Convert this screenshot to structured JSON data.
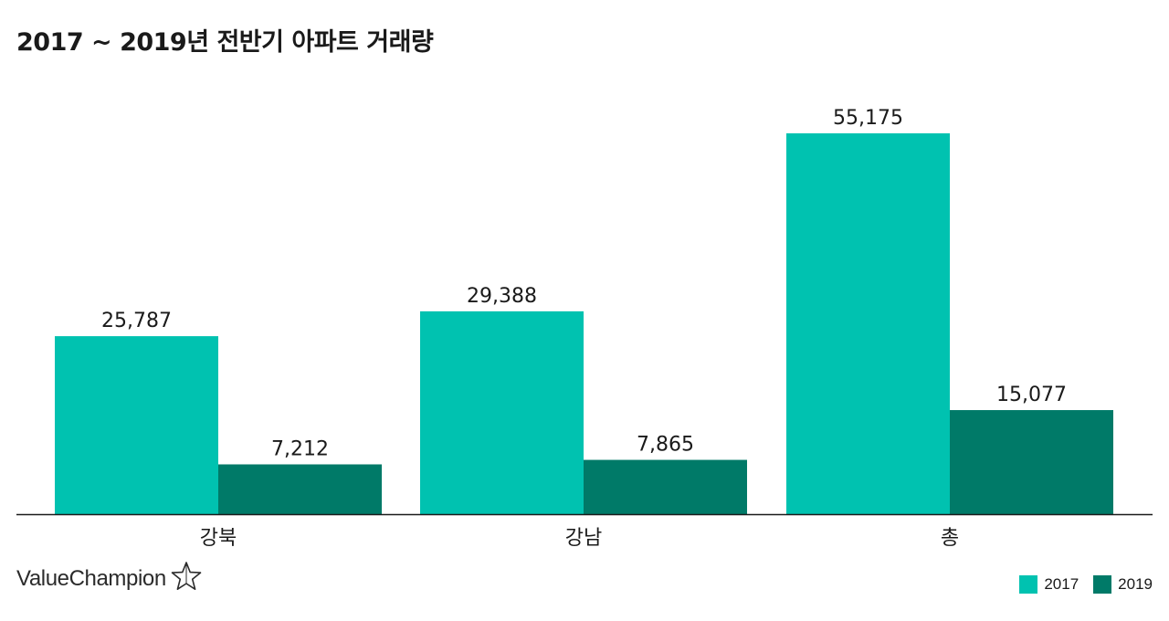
{
  "page": {
    "title": "2017 ~ 2019년 전반기 아파트 거래량"
  },
  "brand": {
    "name": "ValueChampion",
    "icon": "star-outline-icon"
  },
  "colors": {
    "series_2017": "#00c2b0",
    "series_2019": "#007a68",
    "axis": "#1a1a1a"
  },
  "legend": {
    "items": [
      {
        "label": "2017",
        "color": "#00c2b0"
      },
      {
        "label": "2019",
        "color": "#007a68"
      }
    ]
  },
  "chart_data": {
    "type": "bar",
    "title": "2017 ~ 2019년 전반기 아파트 거래량",
    "xlabel": "",
    "ylabel": "",
    "categories": [
      "강북",
      "강남",
      "총"
    ],
    "series": [
      {
        "name": "2017",
        "values": [
          25787,
          29388,
          55175
        ],
        "labels": [
          "25,787",
          "29,388",
          "55,175"
        ]
      },
      {
        "name": "2019",
        "values": [
          7212,
          7865,
          15077
        ],
        "labels": [
          "7,212",
          "7,865",
          "15,077"
        ]
      }
    ],
    "ylim": [
      0,
      60000
    ],
    "grid": false,
    "legend": "bottom-right"
  }
}
